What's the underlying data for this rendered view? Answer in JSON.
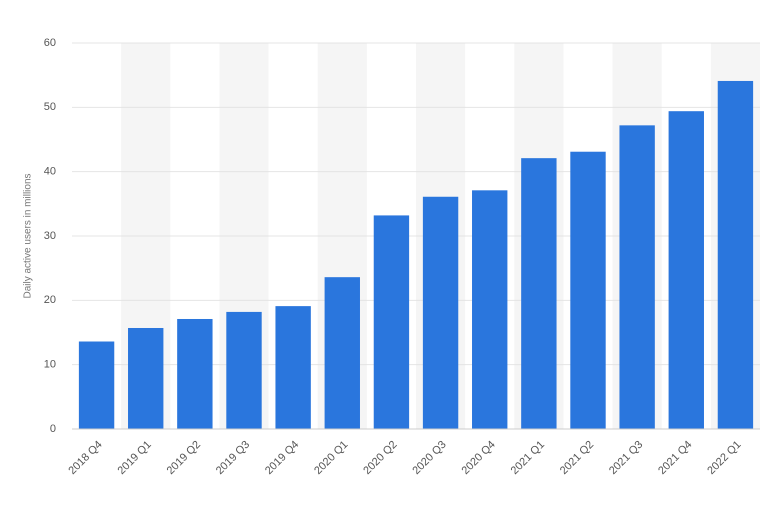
{
  "chart_data": {
    "type": "bar",
    "y_label": "Daily active users in millions",
    "categories": [
      "2018 Q4",
      "2019 Q1",
      "2019 Q2",
      "2019 Q3",
      "2019 Q4",
      "2020 Q1",
      "2020 Q2",
      "2020 Q3",
      "2020 Q4",
      "2021 Q1",
      "2021 Q2",
      "2021 Q3",
      "2021 Q4",
      "2022 Q1"
    ],
    "values": [
      13.6,
      15.7,
      17.1,
      18.2,
      19.1,
      23.6,
      33.2,
      36.1,
      37.1,
      42.1,
      43.1,
      47.2,
      49.4,
      54.1
    ],
    "color": "#2a76dd",
    "ylim": [
      0,
      60
    ],
    "yticks": [
      0,
      10,
      20,
      30,
      40,
      50,
      60
    ],
    "grid": true,
    "band_shading": true
  }
}
